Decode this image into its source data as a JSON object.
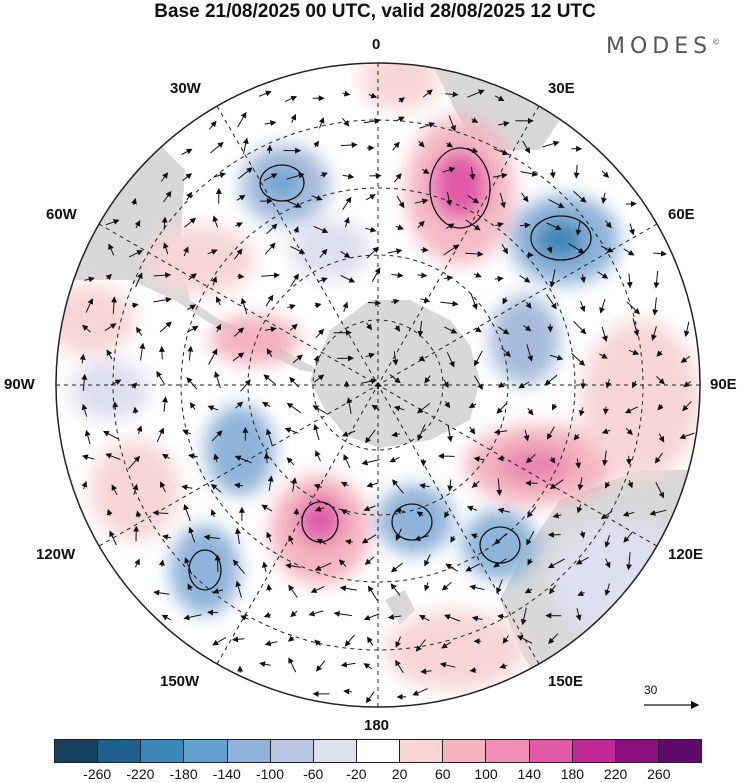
{
  "title": "Base 21/08/2025 00 UTC, valid 28/08/2025 12 UTC",
  "brand": "MODES",
  "brand_mark": "©",
  "longitude_labels": {
    "lon0": "0",
    "lon30e": "30E",
    "lon60e": "60E",
    "lon90e": "90E",
    "lon120e": "120E",
    "lon150e": "150E",
    "lon180": "180",
    "lon150w": "150W",
    "lon120w": "120W",
    "lon90w": "90W",
    "lon60w": "60W",
    "lon30w": "30W"
  },
  "reference_vector": {
    "label": "30",
    "value": 30
  },
  "colorbar": {
    "colors": [
      "#16405e",
      "#1f5f8b",
      "#3c86b8",
      "#63a2cf",
      "#8fb4d9",
      "#bdc6e2",
      "#dedfef",
      "#ffffff",
      "#f8d6d6",
      "#f4b4c0",
      "#ef8fb3",
      "#e05aa8",
      "#c02995",
      "#8a0f7f",
      "#5e0a6a"
    ],
    "tick_labels": [
      "-260",
      "-220",
      "-180",
      "-140",
      "-100",
      "-60",
      "-20",
      "20",
      "60",
      "100",
      "140",
      "180",
      "220",
      "260"
    ]
  },
  "icons": {
    "wind_arrow": "wind-vector-icon",
    "pole": "south-pole-icon"
  }
}
